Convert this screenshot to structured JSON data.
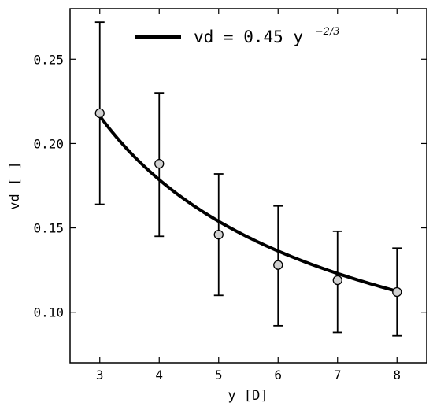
{
  "chart_data": {
    "type": "scatter",
    "xlabel": "y [D]",
    "ylabel": "vd [ ]",
    "xlim": [
      2.5,
      8.5
    ],
    "ylim": [
      0.07,
      0.28
    ],
    "xticks": [
      3,
      4,
      5,
      6,
      7,
      8
    ],
    "yticks": [
      0.1,
      0.15,
      0.2,
      0.25
    ],
    "xtick_labels": [
      "3",
      "4",
      "5",
      "6",
      "7",
      "8"
    ],
    "ytick_labels": [
      "0.10",
      "0.15",
      "0.20",
      "0.25"
    ],
    "grid": false,
    "legend_position": "top-center",
    "points": [
      {
        "x": 3,
        "y": 0.218,
        "err_low": 0.164,
        "err_high": 0.272
      },
      {
        "x": 4,
        "y": 0.188,
        "err_low": 0.145,
        "err_high": 0.23
      },
      {
        "x": 5,
        "y": 0.146,
        "err_low": 0.11,
        "err_high": 0.182
      },
      {
        "x": 6,
        "y": 0.128,
        "err_low": 0.092,
        "err_high": 0.163
      },
      {
        "x": 7,
        "y": 0.119,
        "err_low": 0.088,
        "err_high": 0.148
      },
      {
        "x": 8,
        "y": 0.112,
        "err_low": 0.086,
        "err_high": 0.138
      }
    ],
    "fit": {
      "label_prefix": "vd = 0.45 y",
      "label_exponent": "−2/3",
      "coefficient": 0.45,
      "exponent": -0.6667,
      "x_range": [
        3,
        8
      ],
      "color": "#000000"
    },
    "marker_fill": "#d0d0d0",
    "marker_edge": "#000000"
  }
}
